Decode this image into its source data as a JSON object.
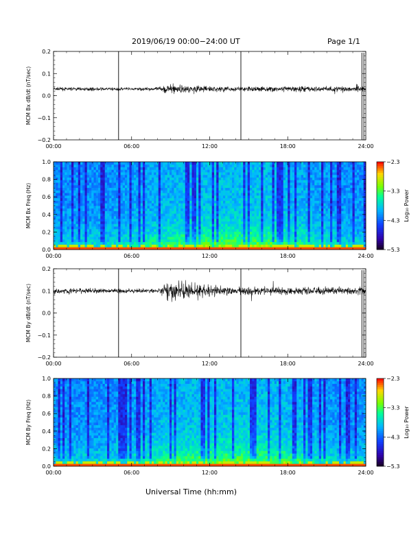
{
  "header": {
    "title": "2019/06/19  00:00−24:00 UT",
    "page": "Page 1/1"
  },
  "xlabel": "Universal Time (hh:mm)",
  "chart_data": [
    {
      "type": "line",
      "ylabel": "MCM Bx dB/dt (nT/sec)",
      "xlim": [
        0,
        24
      ],
      "ylim": [
        -0.2,
        0.2
      ],
      "x_ticks": [
        "00:00",
        "06:00",
        "12:00",
        "18:00",
        "24:00"
      ],
      "y_ticks": [
        "0.2",
        "0.1",
        "0.0",
        "−0.1",
        "−0.2"
      ],
      "baseline": 0.03,
      "noise_profile": {
        "hours": [
          0,
          8,
          8.8,
          10,
          13,
          24
        ],
        "amplitude": [
          0.005,
          0.005,
          0.015,
          0.012,
          0.008,
          0.009
        ]
      },
      "spikes_hours": [
        5.0,
        14.4,
        23.7,
        23.85
      ],
      "series_color": "#000000"
    },
    {
      "type": "heatmap",
      "ylabel": "MCM Bx Freq (Hz)",
      "xlim": [
        0,
        24
      ],
      "ylim": [
        0,
        1.0
      ],
      "x_ticks": [
        "00:00",
        "06:00",
        "12:00",
        "18:00",
        "24:00"
      ],
      "y_ticks": [
        "1.0",
        "0.8",
        "0.6",
        "0.4",
        "0.2",
        "0.0"
      ],
      "colorbar": {
        "label": "Log₁₀ Power",
        "ticks": [
          "−2.3",
          "−3.3",
          "−4.3",
          "−5.3"
        ],
        "range": [
          -5.3,
          -2.3
        ]
      }
    },
    {
      "type": "line",
      "ylabel": "MCM By dB/dt (nT/sec)",
      "xlim": [
        0,
        24
      ],
      "ylim": [
        -0.2,
        0.2
      ],
      "x_ticks": [
        "00:00",
        "06:00",
        "12:00",
        "18:00",
        "24:00"
      ],
      "y_ticks": [
        "0.2",
        "0.1",
        "0.0",
        "−0.1",
        "−0.2"
      ],
      "baseline": 0.1,
      "noise_profile": {
        "hours": [
          0,
          8,
          8.8,
          10,
          13,
          24
        ],
        "amplitude": [
          0.009,
          0.006,
          0.03,
          0.026,
          0.012,
          0.012
        ]
      },
      "spikes_hours": [
        5.0,
        14.4,
        23.7,
        23.85
      ],
      "series_color": "#000000"
    },
    {
      "type": "heatmap",
      "ylabel": "MCM By Freq (Hz)",
      "xlim": [
        0,
        24
      ],
      "ylim": [
        0,
        1.0
      ],
      "x_ticks": [
        "00:00",
        "06:00",
        "12:00",
        "18:00",
        "24:00"
      ],
      "y_ticks": [
        "1.0",
        "0.8",
        "0.6",
        "0.4",
        "0.2",
        "0.0"
      ],
      "colorbar": {
        "label": "Log₁₀ Power",
        "ticks": [
          "−2.3",
          "−3.3",
          "−4.3",
          "−5.3"
        ],
        "range": [
          -5.3,
          -2.3
        ]
      }
    }
  ]
}
